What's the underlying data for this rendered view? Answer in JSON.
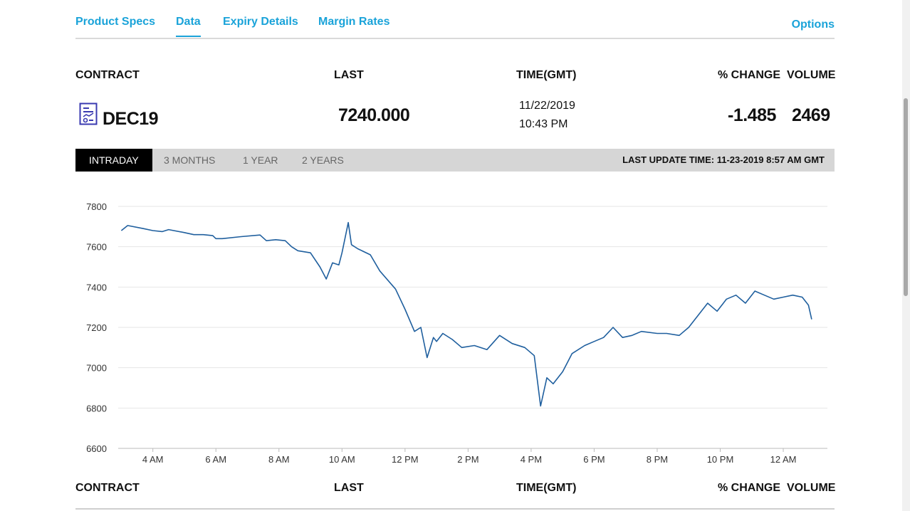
{
  "tabs": [
    {
      "label": "Product Specs",
      "active": false
    },
    {
      "label": "Data",
      "active": true
    },
    {
      "label": "Expiry Details",
      "active": false
    },
    {
      "label": "Margin Rates",
      "active": false
    }
  ],
  "options_label": "Options",
  "table_header": {
    "contract": "CONTRACT",
    "last": "LAST",
    "time": "TIME(GMT)",
    "pct_change": "% CHANGE",
    "volume": "VOLUME"
  },
  "row": {
    "icon": "document-chart-icon",
    "contract": "DEC19",
    "last": "7240.000",
    "date": "11/22/2019",
    "time": "10:43 PM",
    "pct_change": "-1.485",
    "volume": "2469"
  },
  "ranges": [
    {
      "label": "INTRADAY",
      "active": true
    },
    {
      "label": "3 MONTHS",
      "active": false
    },
    {
      "label": "1 YEAR",
      "active": false
    },
    {
      "label": "2 YEARS",
      "active": false
    }
  ],
  "last_update": "LAST UPDATE TIME: 11-23-2019 8:57 AM GMT",
  "colors": {
    "accent": "#1aa3d9",
    "line": "#1f5f9e",
    "icon": "#3a3ab0"
  },
  "chart_data": {
    "type": "line",
    "ylim": [
      6600,
      7800
    ],
    "y_ticks": [
      6600,
      6800,
      7000,
      7200,
      7400,
      7600,
      7800
    ],
    "x_ticks": [
      {
        "label": "4 AM",
        "h": 4
      },
      {
        "label": "6 AM",
        "h": 6
      },
      {
        "label": "8 AM",
        "h": 8
      },
      {
        "label": "10 AM",
        "h": 10
      },
      {
        "label": "12 PM",
        "h": 12
      },
      {
        "label": "2 PM",
        "h": 14
      },
      {
        "label": "4 PM",
        "h": 16
      },
      {
        "label": "6 PM",
        "h": 18
      },
      {
        "label": "8 PM",
        "h": 20
      },
      {
        "label": "10 PM",
        "h": 22
      },
      {
        "label": "12 AM",
        "h": 24
      }
    ],
    "xlim": [
      2.9,
      25.4
    ],
    "grid": true,
    "series": [
      {
        "name": "",
        "x": [
          3.0,
          3.2,
          3.7,
          4.0,
          4.3,
          4.5,
          5.0,
          5.3,
          5.6,
          5.9,
          6.0,
          6.2,
          6.8,
          7.4,
          7.6,
          7.9,
          8.2,
          8.4,
          8.6,
          9.0,
          9.3,
          9.5,
          9.7,
          9.9,
          10.0,
          10.2,
          10.3,
          10.5,
          10.9,
          11.2,
          11.7,
          12.0,
          12.3,
          12.5,
          12.7,
          12.9,
          13.0,
          13.2,
          13.5,
          13.8,
          14.2,
          14.6,
          15.0,
          15.4,
          15.8,
          16.1,
          16.3,
          16.5,
          16.7,
          17.0,
          17.3,
          17.7,
          18.0,
          18.3,
          18.6,
          18.9,
          19.2,
          19.5,
          20.0,
          20.3,
          20.7,
          21.0,
          21.3,
          21.6,
          21.9,
          22.2,
          22.5,
          22.8,
          23.1,
          23.4,
          23.7,
          24.0,
          24.3,
          24.6,
          24.8,
          24.9
        ],
        "y": [
          7680,
          7705,
          7690,
          7680,
          7675,
          7685,
          7670,
          7660,
          7660,
          7655,
          7640,
          7640,
          7650,
          7658,
          7630,
          7635,
          7630,
          7600,
          7580,
          7570,
          7500,
          7440,
          7520,
          7510,
          7570,
          7720,
          7610,
          7590,
          7560,
          7480,
          7390,
          7290,
          7180,
          7200,
          7050,
          7150,
          7130,
          7170,
          7140,
          7100,
          7110,
          7090,
          7160,
          7120,
          7100,
          7060,
          6810,
          6950,
          6920,
          6980,
          7070,
          7110,
          7130,
          7150,
          7200,
          7150,
          7160,
          7180,
          7170,
          7170,
          7160,
          7200,
          7260,
          7320,
          7280,
          7340,
          7360,
          7320,
          7380,
          7360,
          7340,
          7350,
          7360,
          7350,
          7310,
          7240
        ]
      }
    ]
  }
}
